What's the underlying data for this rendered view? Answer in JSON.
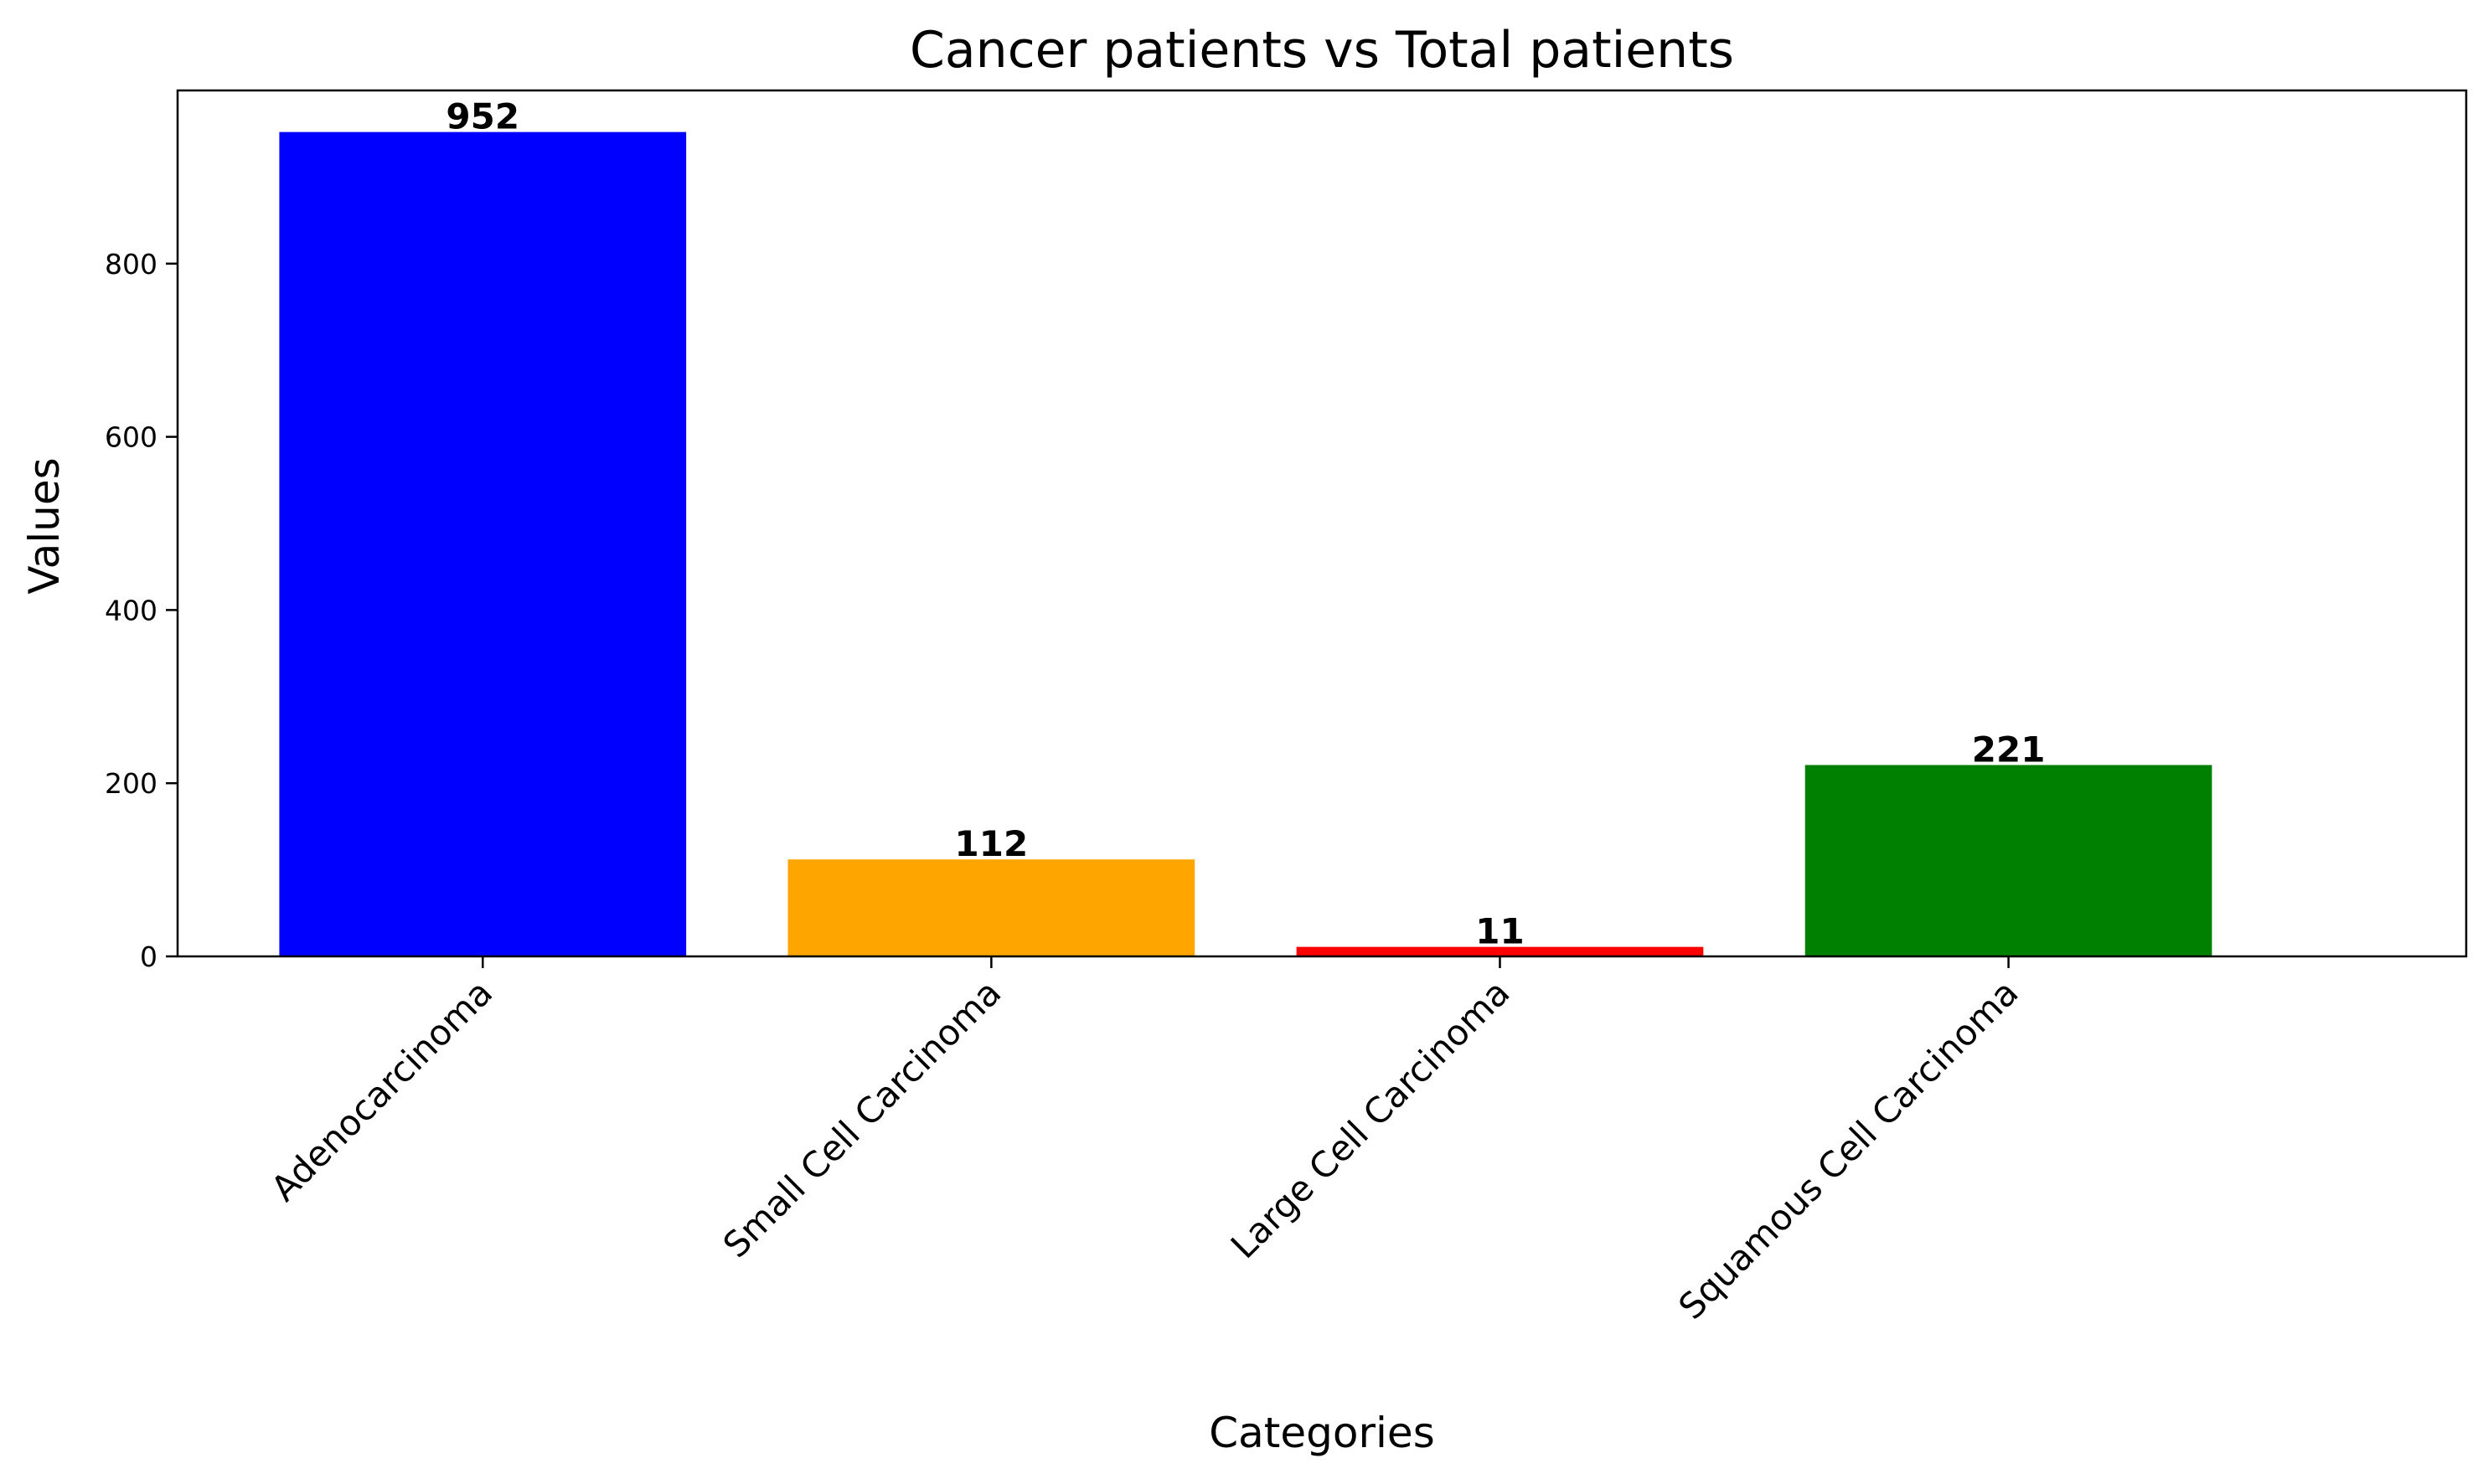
{
  "chart_data": {
    "type": "bar",
    "title": "Cancer patients vs Total patients",
    "xlabel": "Categories",
    "ylabel": "Values",
    "categories": [
      "Adenocarcinoma",
      "Small Cell Carcinoma",
      "Large Cell Carcinoma",
      "Squamous Cell Carcinoma"
    ],
    "values": [
      952,
      112,
      11,
      221
    ],
    "colors": [
      "#0000ff",
      "#ffa500",
      "#ff0000",
      "#008000"
    ],
    "value_labels": [
      "952",
      "112",
      "11",
      "221"
    ],
    "ylim": [
      0,
      1000
    ],
    "yticks": [
      0,
      200,
      400,
      600,
      800
    ],
    "ytick_labels": [
      "0",
      "200",
      "400",
      "600",
      "800"
    ],
    "xlim": [
      -0.6,
      3.9
    ],
    "grid": false,
    "legend": "none"
  }
}
